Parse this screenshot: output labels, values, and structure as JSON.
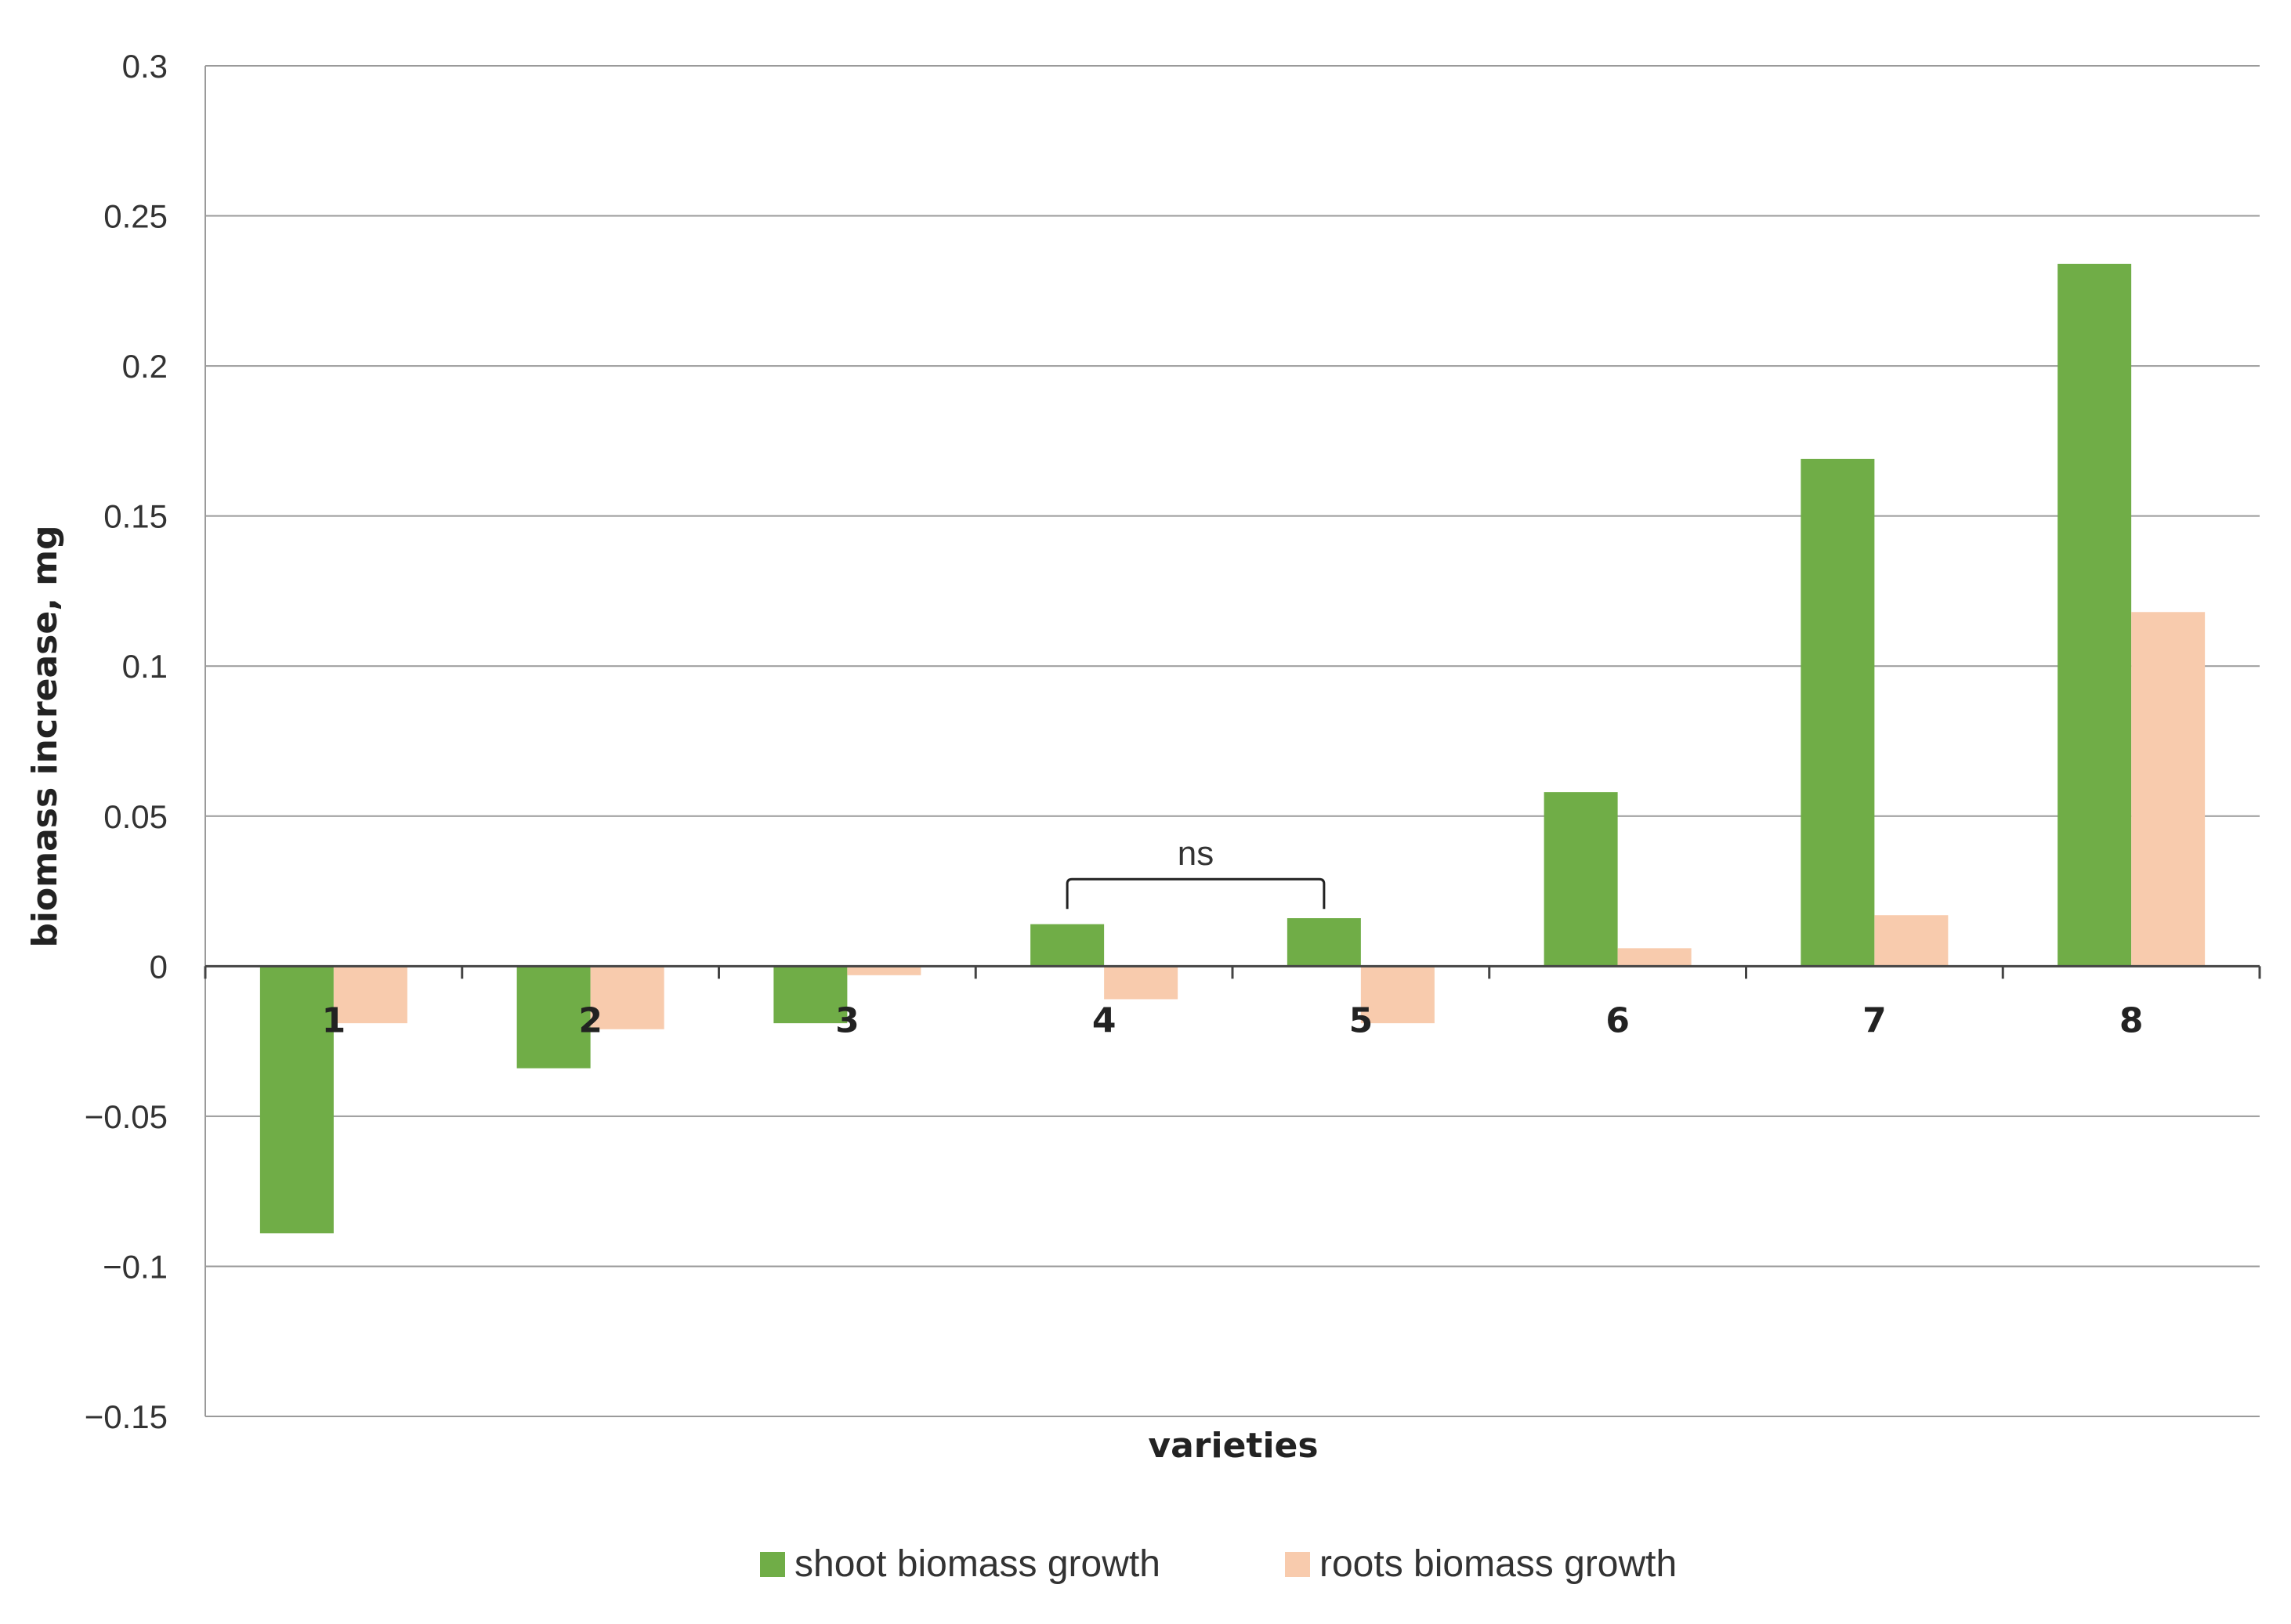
{
  "chart_data": {
    "type": "bar",
    "title": "",
    "xlabel": "varieties",
    "ylabel": "biomass increase, mg",
    "ylim": [
      -0.15,
      0.3
    ],
    "yticks": [
      "0.3",
      "0.25",
      "0.2",
      "0.15",
      "0.1",
      "0.05",
      "0",
      "−0.05",
      "−0.1",
      "−0.15"
    ],
    "ytick_values": [
      0.3,
      0.25,
      0.2,
      0.15,
      0.1,
      0.05,
      0,
      -0.05,
      -0.1,
      -0.15
    ],
    "categories": [
      "1",
      "2",
      "3",
      "4",
      "5",
      "6",
      "7",
      "8"
    ],
    "series": [
      {
        "name": "shoot biomass growth",
        "color": "#70ad47",
        "values": [
          -0.089,
          -0.034,
          -0.019,
          0.014,
          0.016,
          0.058,
          0.169,
          0.234
        ]
      },
      {
        "name": "roots biomass growth",
        "color": "#f8cbad",
        "values": [
          -0.019,
          -0.021,
          -0.003,
          -0.011,
          -0.019,
          0.006,
          0.017,
          0.118
        ]
      }
    ],
    "grid": true,
    "legend": "bottom",
    "annotations": [
      {
        "text": "ns",
        "from_category": "4",
        "to_category": "5",
        "y": 0.029
      }
    ]
  }
}
